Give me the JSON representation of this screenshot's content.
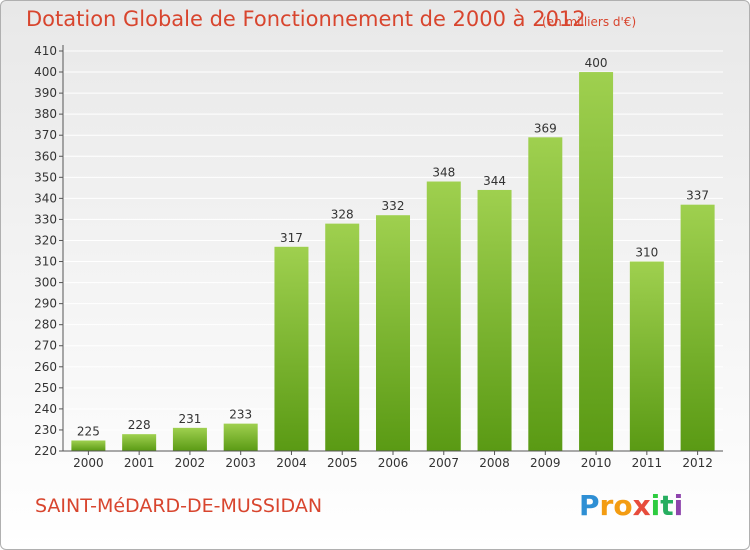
{
  "header": {
    "title": "Dotation Globale de Fonctionnement de 2000 à 2012",
    "subtitle": "(en milliers d'€)"
  },
  "footer": {
    "commune": "SAINT-MéDARD-DE-MUSSIDAN",
    "logo_letters": [
      "P",
      "r",
      "o",
      "x",
      "i",
      "t",
      "i"
    ],
    "logo_colors": [
      "#2e8fd4",
      "#f39c12",
      "#f39c12",
      "#e74c3c",
      "#2ecc40",
      "#27ae60",
      "#8e44ad"
    ]
  },
  "colors": {
    "bar_top": "#9fd04f",
    "bar_bottom": "#5a9a14",
    "axis": "#555555",
    "grid": "#ffffff",
    "title": "#d8452e"
  },
  "chart_data": {
    "type": "bar",
    "categories": [
      "2000",
      "2001",
      "2002",
      "2003",
      "2004",
      "2005",
      "2006",
      "2007",
      "2008",
      "2009",
      "2010",
      "2011",
      "2012"
    ],
    "values": [
      225,
      228,
      231,
      233,
      317,
      328,
      332,
      348,
      344,
      369,
      400,
      310,
      337
    ],
    "ylim": [
      220,
      410
    ],
    "yticks": [
      220,
      230,
      240,
      250,
      260,
      270,
      280,
      290,
      300,
      310,
      320,
      330,
      340,
      350,
      360,
      370,
      380,
      390,
      400,
      410
    ],
    "grid": true,
    "legend": "none"
  }
}
